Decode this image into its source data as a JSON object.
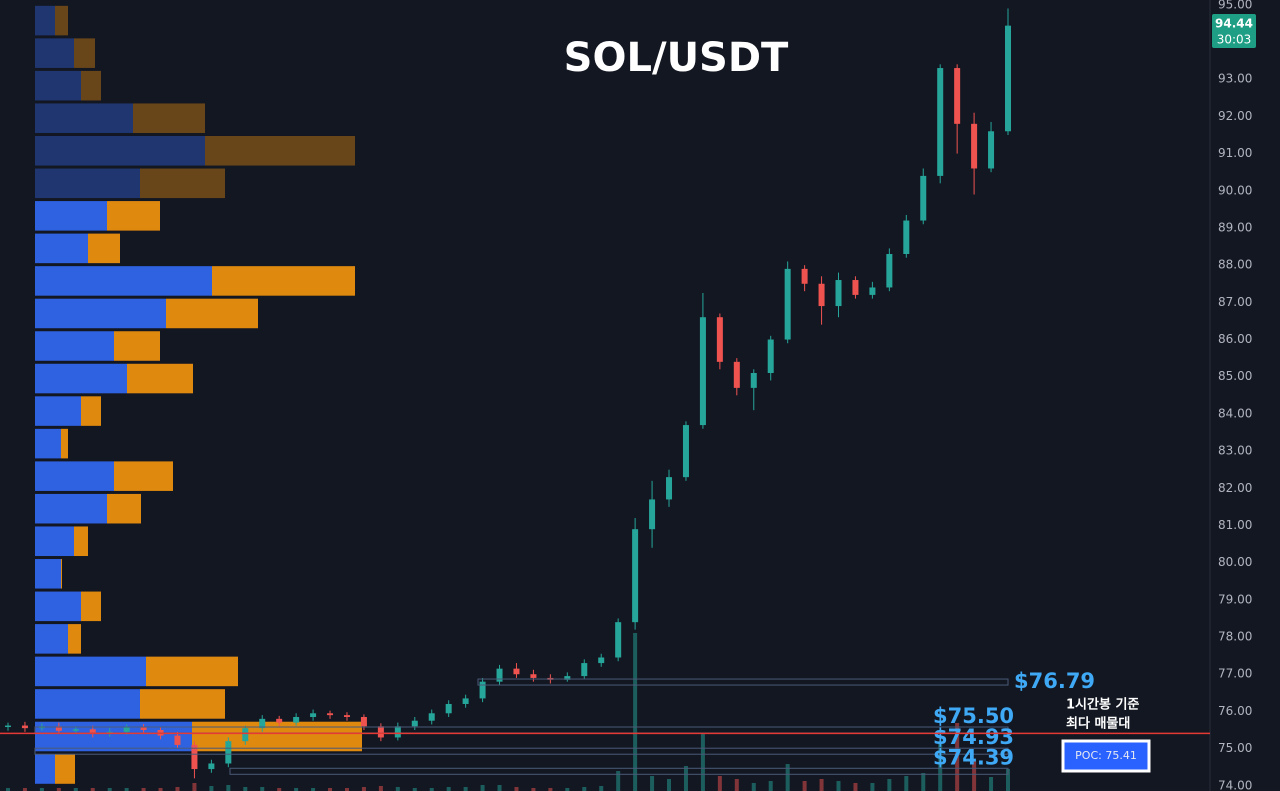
{
  "chart_data": {
    "type": "candlestick",
    "title": "SOL/USDT",
    "categories": [
      null,
      null,
      null,
      null,
      null,
      null,
      null,
      null,
      null,
      null,
      null,
      null,
      null,
      null,
      null,
      null,
      null,
      null,
      null,
      null,
      null,
      null,
      null,
      null,
      null,
      null,
      null,
      null,
      null,
      null,
      null,
      null,
      null,
      null,
      null,
      null,
      null,
      null,
      null,
      null,
      null,
      null,
      null,
      null,
      null,
      null,
      null,
      null,
      null,
      null,
      null,
      null,
      null,
      null,
      null,
      null,
      null,
      null,
      null,
      null
    ],
    "open": [
      75.58,
      75.62,
      75.55,
      75.6,
      75.48,
      75.52,
      75.4,
      75.45,
      75.58,
      75.5,
      75.35,
      75.1,
      74.45,
      74.6,
      75.2,
      75.55,
      75.8,
      75.7,
      75.85,
      75.95,
      75.9,
      75.85,
      75.6,
      75.3,
      75.6,
      75.75,
      75.95,
      76.2,
      76.35,
      76.8,
      77.15,
      77.0,
      76.9,
      76.85,
      76.95,
      77.3,
      77.45,
      78.4,
      80.9,
      81.7,
      82.3,
      83.7,
      86.6,
      85.4,
      84.7,
      85.1,
      86.0,
      87.9,
      87.5,
      86.9,
      87.6,
      87.2,
      87.4,
      88.3,
      89.2,
      90.4,
      93.3,
      91.8,
      90.6,
      91.6
    ],
    "high": [
      75.7,
      75.72,
      75.68,
      75.7,
      75.6,
      75.62,
      75.55,
      75.65,
      75.66,
      75.58,
      75.45,
      75.2,
      74.7,
      75.3,
      75.62,
      75.9,
      75.88,
      75.95,
      76.05,
      76.02,
      75.98,
      75.92,
      75.68,
      75.7,
      75.85,
      76.05,
      76.3,
      76.45,
      76.9,
      77.25,
      77.3,
      77.12,
      77.0,
      77.05,
      77.4,
      77.55,
      78.5,
      81.2,
      82.2,
      82.5,
      83.8,
      87.25,
      86.7,
      85.5,
      85.2,
      86.1,
      88.1,
      88.0,
      87.7,
      87.8,
      87.7,
      87.55,
      88.45,
      89.35,
      90.6,
      93.4,
      93.4,
      92.1,
      91.85,
      94.9
    ],
    "low": [
      75.48,
      75.45,
      75.48,
      75.4,
      75.42,
      75.3,
      75.32,
      75.38,
      75.4,
      75.25,
      75.0,
      74.2,
      74.35,
      74.5,
      75.1,
      75.45,
      75.6,
      75.62,
      75.75,
      75.8,
      75.75,
      75.5,
      75.2,
      75.22,
      75.5,
      75.65,
      75.85,
      76.1,
      76.25,
      76.7,
      76.9,
      76.8,
      76.75,
      76.8,
      76.88,
      77.2,
      77.35,
      78.2,
      80.4,
      81.5,
      82.2,
      83.6,
      85.2,
      84.5,
      84.1,
      84.9,
      85.9,
      87.3,
      86.4,
      86.6,
      87.1,
      87.1,
      87.3,
      88.2,
      89.1,
      90.2,
      91.0,
      89.9,
      90.5,
      91.5
    ],
    "close": [
      75.62,
      75.55,
      75.6,
      75.48,
      75.52,
      75.4,
      75.45,
      75.58,
      75.5,
      75.35,
      75.1,
      74.45,
      74.6,
      75.2,
      75.55,
      75.8,
      75.7,
      75.85,
      75.95,
      75.9,
      75.85,
      75.6,
      75.3,
      75.6,
      75.75,
      75.95,
      76.2,
      76.35,
      76.8,
      77.15,
      77.0,
      76.9,
      76.85,
      76.95,
      77.3,
      77.45,
      78.4,
      80.9,
      81.7,
      82.3,
      83.7,
      86.6,
      85.4,
      84.7,
      85.1,
      86.0,
      87.9,
      87.5,
      86.9,
      87.6,
      87.2,
      87.4,
      88.3,
      89.2,
      90.4,
      93.3,
      91.8,
      90.6,
      91.6,
      94.44
    ],
    "volume": [
      3,
      3,
      3,
      3,
      3,
      3,
      3,
      3,
      3,
      3,
      4,
      8,
      5,
      6,
      4,
      4,
      3,
      3,
      3,
      3,
      3,
      4,
      5,
      4,
      3,
      3,
      4,
      4,
      6,
      6,
      4,
      3,
      3,
      3,
      4,
      5,
      20,
      158,
      15,
      12,
      25,
      57,
      15,
      12,
      8,
      10,
      27,
      10,
      12,
      10,
      8,
      8,
      12,
      15,
      18,
      50,
      68,
      30,
      14,
      22
    ],
    "up_color": "#26a69a",
    "down_color": "#ef5350",
    "ylim": [
      73.86,
      95.13
    ],
    "yticks": [
      {
        "value": 74,
        "label": "74.00"
      },
      {
        "value": 75,
        "label": "75.00"
      },
      {
        "value": 76,
        "label": "76.00"
      },
      {
        "value": 77,
        "label": "77.00"
      },
      {
        "value": 78,
        "label": "78.00"
      },
      {
        "value": 79,
        "label": "79.00"
      },
      {
        "value": 80,
        "label": "80.00"
      },
      {
        "value": 81,
        "label": "81.00"
      },
      {
        "value": 82,
        "label": "82.00"
      },
      {
        "value": 83,
        "label": "83.00"
      },
      {
        "value": 84,
        "label": "84.00"
      },
      {
        "value": 85,
        "label": "85.00"
      },
      {
        "value": 86,
        "label": "86.00"
      },
      {
        "value": 87,
        "label": "87.00"
      },
      {
        "value": 88,
        "label": "88.00"
      },
      {
        "value": 89,
        "label": "89.00"
      },
      {
        "value": 90,
        "label": "90.00"
      },
      {
        "value": 91,
        "label": "91.00"
      },
      {
        "value": 92,
        "label": "92.00"
      },
      {
        "value": 93,
        "label": "93.00"
      },
      {
        "value": 94,
        "label": "94.00"
      },
      {
        "value": 95,
        "label": "95.00"
      }
    ],
    "countdown": "30:03",
    "profile": {
      "bins": [
        95,
        94.125,
        93.25,
        92.375,
        91.5,
        90.625,
        89.75,
        88.875,
        88,
        87.125,
        86.25,
        85.375,
        84.5,
        83.625,
        82.75,
        81.875,
        81,
        80.125,
        79.25,
        78.375,
        77.5,
        76.625,
        75.75,
        74.875,
        74
      ],
      "buy": [
        20,
        39,
        46,
        98,
        170,
        105,
        72,
        53,
        177,
        131,
        79,
        92,
        46,
        26,
        79,
        72,
        39,
        26,
        46,
        33,
        111,
        105,
        157,
        20
      ],
      "sell": [
        13,
        21,
        20,
        72,
        150,
        85,
        53,
        32,
        143,
        92,
        46,
        66,
        20,
        7,
        59,
        34,
        14,
        1,
        20,
        13,
        92,
        85,
        170,
        20
      ],
      "buy_color": "#2f62e0",
      "sell_color": "#e0890f"
    },
    "levels": [
      {
        "value": 76.79,
        "label": "$76.79"
      },
      {
        "value": 75.5,
        "label": "$75.50"
      },
      {
        "value": 74.93,
        "label": "$74.93"
      },
      {
        "value": 74.39,
        "label": "$74.39"
      }
    ],
    "poc": {
      "value": 75.41,
      "label": "POC: 75.41"
    },
    "annotation": [
      "1시간봉 기준",
      "최다 매물대"
    ]
  }
}
